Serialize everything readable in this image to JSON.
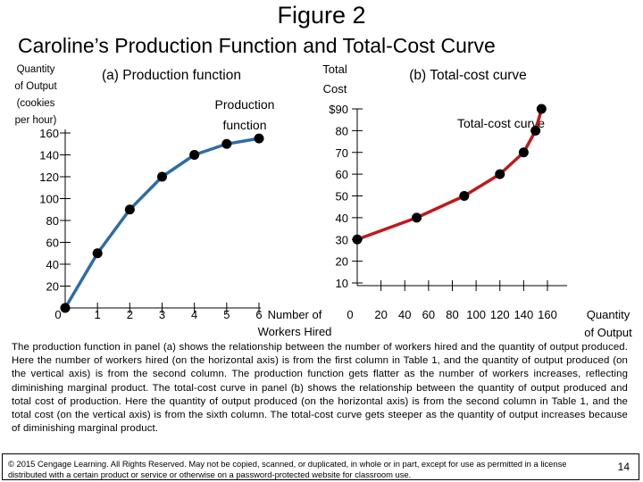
{
  "slide": {
    "title": "Figure 2",
    "subtitle": "Caroline’s Production Function and Total-Cost Curve",
    "caption": "The production function in panel (a) shows the relationship between the number of workers hired and the quantity of output produced. Here the number of workers hired (on the horizontal axis) is from the first column in Table 1, and the quantity of output produced (on the vertical axis) is from the second column. The production function gets flatter as the number of workers increases, reflecting diminishing marginal product. The total-cost curve in panel (b) shows the relationship between the quantity of output produced and total cost of production. Here the quantity of output produced (on the horizontal axis) is from the second column in Table 1, and the total cost (on the vertical axis) is from the sixth column. The total-cost curve gets steeper as the quantity of output increases because of diminishing marginal product.",
    "copyright": "© 2015 Cengage Learning. All Rights Reserved. May not be copied, scanned, or duplicated, in whole or in part, except for use as permitted in a license distributed with a certain product or service or otherwise on a password-protected website for classroom use.",
    "page_number": "14"
  },
  "chart_data": [
    {
      "type": "line",
      "panel_title": "(a) Production function",
      "curve_label": [
        "Production",
        "function"
      ],
      "xlabel": [
        "Number of",
        "Workers Hired"
      ],
      "ylabel": [
        "Quantity",
        "of Output",
        "(cookies",
        "per hour)"
      ],
      "x_ticks": [
        "0",
        "1",
        "2",
        "3",
        "4",
        "5",
        "6"
      ],
      "y_ticks": [
        "20",
        "40",
        "60",
        "80",
        "100",
        "120",
        "140",
        "160"
      ],
      "xlim": [
        0,
        6
      ],
      "ylim": [
        0,
        160
      ],
      "color": "#2e6da4",
      "series": [
        {
          "x": [
            0,
            1,
            2,
            3,
            4,
            5,
            6
          ],
          "y": [
            0,
            50,
            90,
            120,
            140,
            150,
            155
          ]
        }
      ]
    },
    {
      "type": "line",
      "panel_title": "(b) Total-cost curve",
      "curve_label": [
        "Total-cost curve"
      ],
      "xlabel": [
        "Quantity",
        "of Output"
      ],
      "ylabel": [
        "Total",
        "Cost"
      ],
      "x_ticks": [
        "0",
        "20",
        "40",
        "60",
        "80",
        "100",
        "120",
        "140",
        "160"
      ],
      "y_ticks": [
        "10",
        "20",
        "30",
        "40",
        "50",
        "60",
        "70",
        "80",
        "$90"
      ],
      "xlim": [
        0,
        160
      ],
      "ylim": [
        0,
        90
      ],
      "color": "#c0191c",
      "series": [
        {
          "x": [
            0,
            50,
            90,
            120,
            140,
            150,
            155
          ],
          "y": [
            30,
            40,
            50,
            60,
            70,
            80,
            90
          ]
        }
      ]
    }
  ]
}
